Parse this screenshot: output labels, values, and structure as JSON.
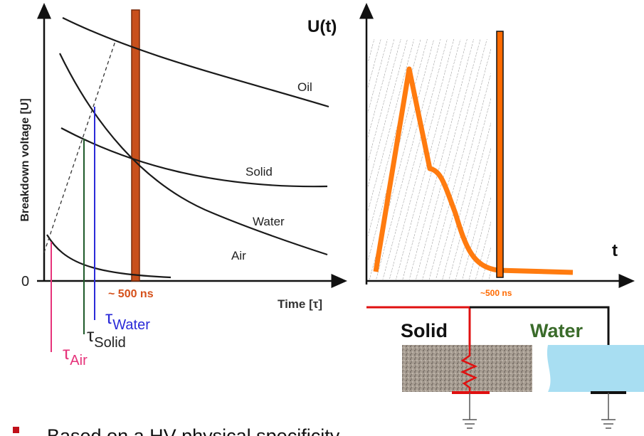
{
  "left_plot": {
    "y_axis_label": "Breakdown voltage  [U]",
    "origin_label": "0",
    "x_axis_label": "Time [τ]",
    "marker_label": "~ 500 ns",
    "curves": [
      "Oil",
      "Solid",
      "Water",
      "Air"
    ],
    "taus": [
      {
        "symbol": "τ",
        "subscript": "Water"
      },
      {
        "symbol": "τ",
        "subscript": "Solid"
      },
      {
        "symbol": "τ",
        "subscript": "Air"
      }
    ]
  },
  "right_plot": {
    "y_axis_label": "U(t)",
    "x_axis_label": "t",
    "marker_label": "~500 ns",
    "materials": [
      "Solid",
      "Water"
    ]
  },
  "bullet": "Based on a HV physical specificity"
}
